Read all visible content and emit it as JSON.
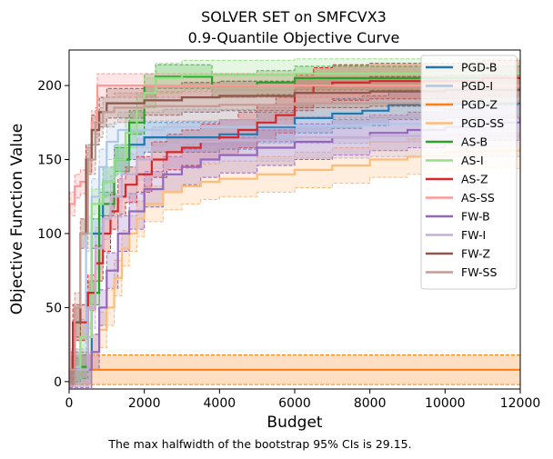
{
  "chart_data": {
    "type": "line",
    "title": "SOLVER SET on SMFCVX3",
    "subtitle": "0.9-Quantile Objective Curve",
    "xlabel": "Budget",
    "ylabel": "Objective Function Value",
    "xlim": [
      0,
      12000
    ],
    "ylim": [
      -5,
      224
    ],
    "xticks": [
      0,
      2000,
      4000,
      6000,
      8000,
      10000,
      12000
    ],
    "yticks": [
      0,
      50,
      100,
      150,
      200
    ],
    "xtick_labels": [
      "0",
      "2000",
      "4000",
      "6000",
      "8000",
      "10000",
      "12000"
    ],
    "ytick_labels": [
      "0",
      "50",
      "100",
      "150",
      "200"
    ],
    "grid": false,
    "legend_position": "top-right",
    "footnote": "The max halfwidth of the bootstrap 95% CIs is 29.15.",
    "series": [
      {
        "name": "PGD-B",
        "color": "#1f77b4",
        "ci": 10,
        "points": [
          [
            0,
            8
          ],
          [
            300,
            8
          ],
          [
            600,
            100
          ],
          [
            900,
            135
          ],
          [
            1200,
            150
          ],
          [
            1600,
            160
          ],
          [
            2000,
            165
          ],
          [
            3000,
            165
          ],
          [
            4000,
            167
          ],
          [
            5000,
            172
          ],
          [
            6000,
            178
          ],
          [
            7000,
            181
          ],
          [
            7800,
            183
          ],
          [
            8500,
            187
          ],
          [
            10000,
            188
          ],
          [
            12000,
            188
          ]
        ]
      },
      {
        "name": "PGD-I",
        "color": "#aec7e8",
        "ci": 12,
        "points": [
          [
            0,
            8
          ],
          [
            150,
            10
          ],
          [
            300,
            30
          ],
          [
            450,
            100
          ],
          [
            600,
            125
          ],
          [
            800,
            145
          ],
          [
            1000,
            162
          ],
          [
            1300,
            170
          ],
          [
            1800,
            170
          ],
          [
            2500,
            172
          ],
          [
            4000,
            172
          ],
          [
            5000,
            173
          ],
          [
            6000,
            173
          ],
          [
            8000,
            174
          ],
          [
            10000,
            175
          ],
          [
            12000,
            178
          ]
        ]
      },
      {
        "name": "PGD-Z",
        "color": "#ff7f0e",
        "ci": 10,
        "points": [
          [
            0,
            8
          ],
          [
            300,
            8
          ],
          [
            1000,
            8
          ],
          [
            2000,
            8
          ],
          [
            4000,
            8
          ],
          [
            6000,
            8
          ],
          [
            8000,
            8
          ],
          [
            10000,
            8
          ],
          [
            12000,
            8
          ]
        ]
      },
      {
        "name": "PGD-SS",
        "color": "#ffbb78",
        "ci": 12,
        "points": [
          [
            0,
            8
          ],
          [
            400,
            8
          ],
          [
            600,
            20
          ],
          [
            800,
            35
          ],
          [
            1000,
            50
          ],
          [
            1200,
            70
          ],
          [
            1400,
            90
          ],
          [
            1600,
            100
          ],
          [
            1800,
            110
          ],
          [
            2000,
            120
          ],
          [
            2500,
            128
          ],
          [
            3000,
            132
          ],
          [
            3500,
            135
          ],
          [
            4000,
            137
          ],
          [
            5000,
            140
          ],
          [
            6000,
            143
          ],
          [
            7000,
            146
          ],
          [
            8000,
            150
          ],
          [
            9000,
            152
          ],
          [
            10000,
            155
          ],
          [
            11000,
            156
          ],
          [
            12000,
            158
          ]
        ]
      },
      {
        "name": "AS-B",
        "color": "#2ca02c",
        "ci": 8,
        "points": [
          [
            0,
            8
          ],
          [
            300,
            10
          ],
          [
            500,
            60
          ],
          [
            800,
            120
          ],
          [
            1200,
            150
          ],
          [
            1600,
            175
          ],
          [
            2000,
            200
          ],
          [
            2300,
            206
          ],
          [
            3800,
            206
          ],
          [
            3801,
            200
          ],
          [
            5000,
            202
          ],
          [
            6000,
            205
          ],
          [
            8000,
            205
          ],
          [
            10000,
            205
          ],
          [
            12000,
            205
          ]
        ]
      },
      {
        "name": "AS-I",
        "color": "#98df8a",
        "ci": 10,
        "points": [
          [
            0,
            8
          ],
          [
            300,
            30
          ],
          [
            600,
            120
          ],
          [
            900,
            135
          ],
          [
            1200,
            150
          ],
          [
            1500,
            168
          ],
          [
            1800,
            185
          ],
          [
            2000,
            195
          ],
          [
            2300,
            205
          ],
          [
            3000,
            207
          ],
          [
            4000,
            207
          ],
          [
            6000,
            208
          ],
          [
            8000,
            208
          ],
          [
            10000,
            208
          ],
          [
            12000,
            208
          ]
        ]
      },
      {
        "name": "AS-Z",
        "color": "#d62728",
        "ci": 12,
        "points": [
          [
            0,
            8
          ],
          [
            100,
            40
          ],
          [
            300,
            40
          ],
          [
            500,
            60
          ],
          [
            700,
            80
          ],
          [
            900,
            100
          ],
          [
            1100,
            115
          ],
          [
            1300,
            125
          ],
          [
            1500,
            133
          ],
          [
            1800,
            140
          ],
          [
            2200,
            150
          ],
          [
            2600,
            155
          ],
          [
            3000,
            158
          ],
          [
            3500,
            162
          ],
          [
            4000,
            165
          ],
          [
            4500,
            170
          ],
          [
            5000,
            175
          ],
          [
            5500,
            180
          ],
          [
            6000,
            195
          ],
          [
            6500,
            200
          ],
          [
            7000,
            202
          ],
          [
            8000,
            203
          ],
          [
            9000,
            203
          ],
          [
            10000,
            203
          ],
          [
            11000,
            205
          ],
          [
            12000,
            205
          ]
        ]
      },
      {
        "name": "AS-SS",
        "color": "#ff9896",
        "ci": 8,
        "points": [
          [
            0,
            8
          ],
          [
            20,
            120
          ],
          [
            150,
            132
          ],
          [
            300,
            135
          ],
          [
            450,
            150
          ],
          [
            600,
            175
          ],
          [
            750,
            200
          ],
          [
            1000,
            200
          ],
          [
            2000,
            200
          ],
          [
            4000,
            200
          ],
          [
            6000,
            200
          ],
          [
            8000,
            200
          ],
          [
            10000,
            200
          ],
          [
            12000,
            200
          ]
        ]
      },
      {
        "name": "FW-B",
        "color": "#9467bd",
        "ci": 12,
        "points": [
          [
            0,
            8
          ],
          [
            400,
            8
          ],
          [
            600,
            20
          ],
          [
            800,
            50
          ],
          [
            1000,
            75
          ],
          [
            1300,
            100
          ],
          [
            1600,
            115
          ],
          [
            2000,
            130
          ],
          [
            2500,
            140
          ],
          [
            3000,
            145
          ],
          [
            3500,
            150
          ],
          [
            4000,
            153
          ],
          [
            5000,
            158
          ],
          [
            6000,
            162
          ],
          [
            7000,
            165
          ],
          [
            8000,
            168
          ],
          [
            9000,
            170
          ],
          [
            10000,
            172
          ],
          [
            11000,
            175
          ],
          [
            12000,
            178
          ]
        ]
      },
      {
        "name": "FW-I",
        "color": "#c5b0d5",
        "ci": 14,
        "points": [
          [
            0,
            8
          ],
          [
            300,
            8
          ],
          [
            500,
            50
          ],
          [
            700,
            90
          ],
          [
            900,
            110
          ],
          [
            1100,
            125
          ],
          [
            1400,
            140
          ],
          [
            1800,
            150
          ],
          [
            2200,
            158
          ],
          [
            2600,
            160
          ],
          [
            3000,
            162
          ],
          [
            4000,
            163
          ],
          [
            6000,
            165
          ],
          [
            8000,
            166
          ],
          [
            10000,
            166
          ],
          [
            12000,
            168
          ]
        ]
      },
      {
        "name": "FW-Z",
        "color": "#8c564b",
        "ci": 10,
        "points": [
          [
            0,
            8
          ],
          [
            150,
            40
          ],
          [
            300,
            100
          ],
          [
            450,
            150
          ],
          [
            600,
            170
          ],
          [
            800,
            182
          ],
          [
            1000,
            188
          ],
          [
            2000,
            190
          ],
          [
            3000,
            192
          ],
          [
            4000,
            193
          ],
          [
            6000,
            195
          ],
          [
            8000,
            196
          ],
          [
            10000,
            197
          ],
          [
            12000,
            197
          ]
        ]
      },
      {
        "name": "FW-SS",
        "color": "#c49c94",
        "ci": 10,
        "points": [
          [
            0,
            8
          ],
          [
            150,
            50
          ],
          [
            300,
            100
          ],
          [
            500,
            150
          ],
          [
            700,
            175
          ],
          [
            900,
            182
          ],
          [
            1200,
            185
          ],
          [
            2000,
            186
          ],
          [
            4000,
            187
          ],
          [
            6000,
            188
          ],
          [
            8000,
            188
          ],
          [
            10000,
            189
          ],
          [
            12000,
            190
          ]
        ]
      }
    ]
  }
}
